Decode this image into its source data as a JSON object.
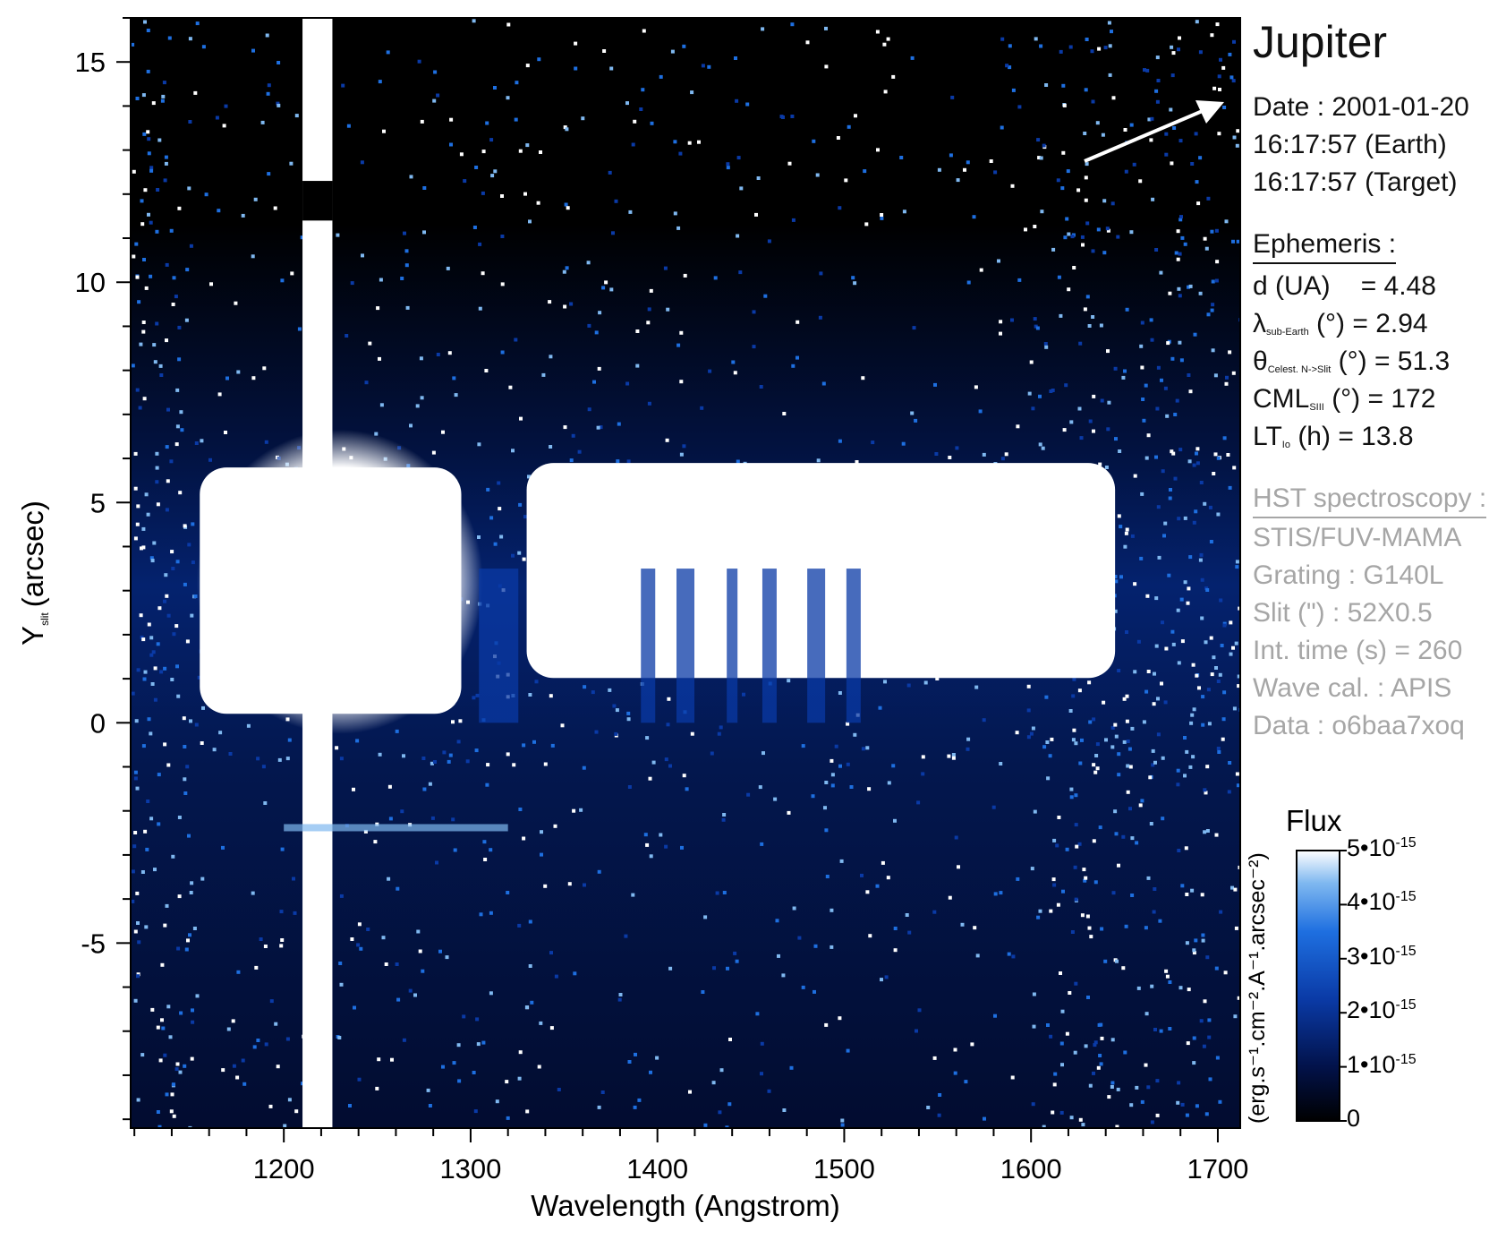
{
  "chart_data": {
    "type": "heatmap",
    "title": "",
    "xlabel": "Wavelength (Angstrom)",
    "ylabel_main": "Y",
    "ylabel_sub": "slit",
    "ylabel_unit": "(arcsec)",
    "xlim": [
      1118,
      1712
    ],
    "ylim": [
      -9.2,
      16
    ],
    "x_ticks": [
      1200,
      1300,
      1400,
      1500,
      1600,
      1700
    ],
    "y_ticks": [
      -5,
      0,
      5,
      10,
      15
    ],
    "x_tick_labels": [
      "1200",
      "1300",
      "1400",
      "1500",
      "1600",
      "1700"
    ],
    "y_tick_labels": [
      "-5",
      "0",
      "5",
      "10",
      "15"
    ],
    "colormap": [
      "#000000",
      "#02124a",
      "#0a3aa6",
      "#1e6fe0",
      "#7fb8f0",
      "#ffffff"
    ],
    "saturated_features": [
      {
        "name": "Lyman-alpha geocoronal line",
        "x_range": [
          1210,
          1226
        ],
        "y_range": [
          -9.2,
          16
        ]
      },
      {
        "name": "H2 auroral band emission",
        "x_range": [
          1145,
          1650
        ],
        "y_range": [
          0,
          6
        ]
      }
    ],
    "colorbar": {
      "title": "Flux",
      "unit": "(erg.s⁻¹.cm⁻².A⁻¹.arcsec⁻²)",
      "range": [
        0,
        5e-15
      ],
      "ticks": [
        {
          "mantissa": "0",
          "exp": ""
        },
        {
          "mantissa": "1•10",
          "exp": "-15"
        },
        {
          "mantissa": "2•10",
          "exp": "-15"
        },
        {
          "mantissa": "3•10",
          "exp": "-15"
        },
        {
          "mantissa": "4•10",
          "exp": "-15"
        },
        {
          "mantissa": "5•10",
          "exp": "-15"
        }
      ]
    }
  },
  "panel": {
    "target": "Jupiter",
    "date_line": "Date : 2001-01-20",
    "time_earth": "16:17:57 (Earth)",
    "time_target": "16:17:57 (Target)",
    "ephemeris_header": "Ephemeris :",
    "d_label": "d (UA)",
    "d_value": "= 4.48",
    "lambda_sym": "λ",
    "lambda_sub": "sub-Earth",
    "lambda_rest": " (°)  = 2.94",
    "theta_sym": "θ",
    "theta_sub": "Celest. N->Slit",
    "theta_rest": " (°) = 51.3",
    "cml_sym": "CML",
    "cml_sub": "SIII",
    "cml_rest": " (°) = 172",
    "lt_sym": "LT",
    "lt_sub": "Io",
    "lt_rest": " (h) = 13.8",
    "hst_header": "HST spectroscopy :",
    "instrument": "STIS/FUV-MAMA",
    "grating": "Grating : G140L",
    "slit": "Slit (\") : 52X0.5",
    "int_time": "Int. time (s) = 260",
    "wave_cal": "Wave cal. : APIS",
    "data_id": "Data : o6baa7xoq"
  }
}
